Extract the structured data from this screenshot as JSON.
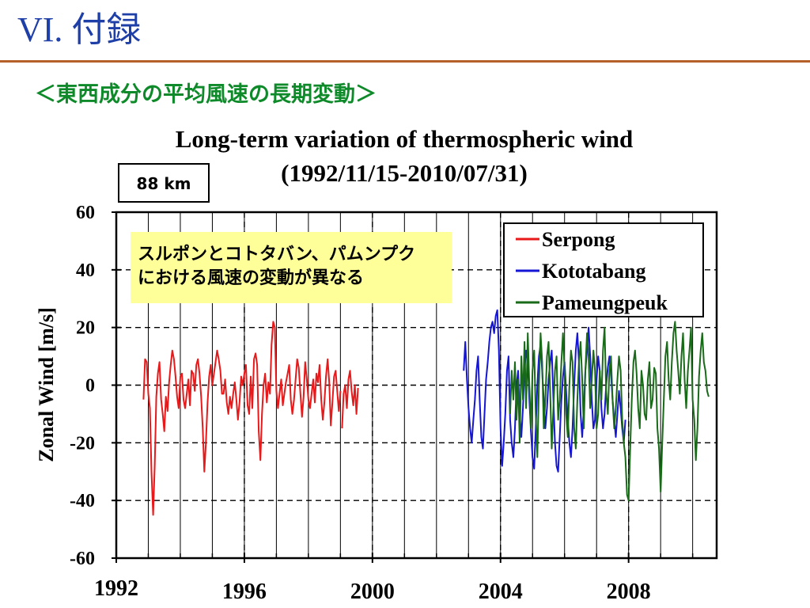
{
  "slide": {
    "title": "VI. 付録",
    "subtitle": "＜東西成分の平均風速の長期変動＞",
    "callout_lines": [
      "スルポンとコトタバン、パムンプク",
      "における風速の変動が異なる"
    ],
    "colors": {
      "title": "#1f3fa8",
      "rule": "#b5602a",
      "subtitle": "#0f8a2a",
      "callout_bg": "#ffff99"
    }
  },
  "chart_data": {
    "type": "line",
    "title": "Long-term variation of thermospheric wind",
    "subtitle": "(1992/11/15-2010/07/31)",
    "altitude_label": "88 km",
    "ylabel": "Zonal Wind [m/s]",
    "xlabel": "",
    "xlim": [
      1992,
      2010.75
    ],
    "ylim": [
      -60,
      60
    ],
    "x_ticks": [
      1992,
      1996,
      2000,
      2004,
      2008
    ],
    "x_tick_labels": [
      "1992",
      "1996",
      "2000",
      "2004",
      "2008"
    ],
    "y_ticks": [
      -60,
      -40,
      -20,
      0,
      20,
      40,
      60
    ],
    "y_tick_labels": [
      "-60",
      "-40",
      "-20",
      "0",
      "20",
      "40",
      "60"
    ],
    "grid": true,
    "legend_position": "top-right",
    "series": [
      {
        "name": "Serpong",
        "color": "#e8191a",
        "segments": [
          {
            "x": [
              1992.85,
              1992.9,
              1992.95,
              1993.0,
              1993.05,
              1993.1,
              1993.15,
              1993.2,
              1993.25,
              1993.3,
              1993.35,
              1993.4,
              1993.45,
              1993.5,
              1993.55,
              1993.6,
              1993.65,
              1993.7,
              1993.75,
              1993.8,
              1993.85,
              1993.9,
              1993.95,
              1994.0,
              1994.05,
              1994.1,
              1994.15,
              1994.2,
              1994.25,
              1994.3,
              1994.35,
              1994.4,
              1994.45,
              1994.5,
              1994.55,
              1994.6,
              1994.65,
              1994.7,
              1994.75,
              1994.8,
              1994.85,
              1994.9,
              1994.95,
              1995.0,
              1995.05,
              1995.1,
              1995.15,
              1995.2,
              1995.25,
              1995.3,
              1995.35,
              1995.4,
              1995.45,
              1995.5,
              1995.55,
              1995.6,
              1995.65,
              1995.7,
              1995.75,
              1995.8,
              1995.85,
              1995.9,
              1995.95,
              1996.0,
              1996.05,
              1996.1,
              1996.15,
              1996.2,
              1996.25,
              1996.3,
              1996.35,
              1996.4,
              1996.45,
              1996.5,
              1996.55,
              1996.6,
              1996.65,
              1996.7,
              1996.75,
              1996.8,
              1996.85,
              1996.9,
              1996.95,
              1997.0,
              1997.05,
              1997.1,
              1997.15,
              1997.2,
              1997.25,
              1997.3,
              1997.35,
              1997.4,
              1997.45,
              1997.5,
              1997.55,
              1997.6,
              1997.65,
              1997.7,
              1997.75,
              1997.8,
              1997.85,
              1997.9,
              1997.95,
              1998.0,
              1998.05,
              1998.1,
              1998.15,
              1998.2,
              1998.25,
              1998.3,
              1998.35,
              1998.4,
              1998.45,
              1998.5,
              1998.55,
              1998.6,
              1998.65,
              1998.7,
              1998.75,
              1998.8,
              1998.85,
              1998.9,
              1998.95,
              1999.0
            ],
            "y": [
              -5,
              9,
              8,
              -3,
              -8,
              -30,
              -45,
              -28,
              -4,
              4,
              8,
              -5,
              -10,
              -16,
              -4,
              -9,
              1,
              7,
              12,
              9,
              3,
              -4,
              -8,
              3,
              4,
              -5,
              -8,
              -3,
              2,
              -7,
              5,
              4,
              -2,
              7,
              9,
              4,
              -4,
              -15,
              -30,
              -20,
              -6,
              3,
              7,
              0,
              4,
              8,
              12,
              9,
              5,
              -3,
              -3,
              2,
              -6,
              -10,
              -4,
              -8,
              -3,
              1,
              -5,
              -12,
              -6,
              3,
              0,
              4,
              7,
              -7,
              -10,
              3,
              -8,
              9,
              11,
              7,
              -16,
              -26,
              -10,
              0,
              4,
              -6,
              1,
              -3,
              14,
              22,
              20,
              -2,
              -8,
              -3,
              2,
              -7,
              -3,
              1,
              4,
              7,
              -5,
              -10,
              -5,
              2,
              9,
              6,
              -3,
              -11,
              -4,
              8,
              2,
              -5,
              -8,
              -3,
              2,
              -6,
              4,
              1,
              7,
              -5,
              -12,
              -6,
              3,
              9,
              1,
              -14,
              -6,
              3,
              5,
              -2,
              -9,
              -2
            ]
          },
          {
            "x": [
              1999.05,
              1999.1,
              1999.15,
              1999.2,
              1999.25,
              1999.3,
              1999.35,
              1999.4,
              1999.45,
              1999.5,
              1999.55
            ],
            "y": [
              -15,
              -3,
              0,
              -8,
              2,
              5,
              -2,
              -7,
              0,
              -10,
              -1
            ]
          }
        ]
      },
      {
        "name": "Kototabang",
        "color": "#1515d6",
        "segments": [
          {
            "x": [
              2002.85,
              2002.9,
              2002.95,
              2003.0,
              2003.05,
              2003.1,
              2003.15,
              2003.2,
              2003.25,
              2003.3,
              2003.35,
              2003.4,
              2003.45,
              2003.5,
              2003.55,
              2003.6,
              2003.65,
              2003.7,
              2003.75,
              2003.8,
              2003.85,
              2003.9,
              2003.95,
              2004.0,
              2004.05,
              2004.1,
              2004.15,
              2004.2,
              2004.25,
              2004.3,
              2004.35,
              2004.4,
              2004.45,
              2004.5,
              2004.55,
              2004.6,
              2004.65,
              2004.7,
              2004.75,
              2004.8,
              2004.85,
              2004.9,
              2004.95,
              2005.0,
              2005.05,
              2005.1,
              2005.15,
              2005.2,
              2005.25,
              2005.3,
              2005.35,
              2005.4,
              2005.45,
              2005.5,
              2005.55,
              2005.6,
              2005.65,
              2005.7,
              2005.75,
              2005.8,
              2005.85,
              2005.9,
              2005.95,
              2006.0,
              2006.05,
              2006.1,
              2006.15,
              2006.2,
              2006.25,
              2006.3,
              2006.35,
              2006.4,
              2006.45,
              2006.5,
              2006.55,
              2006.6,
              2006.65,
              2006.7,
              2006.75,
              2006.8,
              2006.85,
              2006.9,
              2006.95,
              2007.0,
              2007.05,
              2007.1,
              2007.15,
              2007.2,
              2007.25,
              2007.3,
              2007.35,
              2007.4,
              2007.45,
              2007.5,
              2007.55,
              2007.6,
              2007.65,
              2007.7,
              2007.75,
              2007.8,
              2007.85,
              2007.9
            ],
            "y": [
              5,
              15,
              2,
              -8,
              -15,
              -20,
              -12,
              -5,
              5,
              10,
              -5,
              -18,
              -22,
              -10,
              2,
              8,
              15,
              20,
              22,
              18,
              24,
              26,
              12,
              -15,
              -28,
              -20,
              -10,
              5,
              10,
              -12,
              -20,
              -25,
              -15,
              0,
              5,
              -10,
              -18,
              -8,
              5,
              12,
              8,
              -5,
              -16,
              -25,
              -29,
              -15,
              0,
              10,
              14,
              5,
              -5,
              -15,
              -8,
              2,
              8,
              12,
              -5,
              -20,
              -28,
              -30,
              -18,
              -5,
              3,
              8,
              -2,
              -12,
              -20,
              -25,
              -15,
              0,
              12,
              18,
              8,
              -10,
              -18,
              -8,
              5,
              12,
              20,
              10,
              -5,
              -15,
              -12,
              2,
              10,
              5,
              -8,
              -15,
              -10,
              0,
              6,
              10,
              4,
              -5,
              -12,
              -18,
              -10,
              -2,
              -8,
              -15,
              -20,
              -12
            ]
          }
        ]
      },
      {
        "name": "Pameungpeuk",
        "color": "#196b19",
        "segments": [
          {
            "x": [
              2004.3,
              2004.35,
              2004.4,
              2004.45,
              2004.5,
              2004.55,
              2004.6,
              2004.65,
              2004.7,
              2004.75,
              2004.8,
              2004.85,
              2004.9,
              2004.95,
              2005.0,
              2005.05,
              2005.1,
              2005.15,
              2005.2,
              2005.25,
              2005.3,
              2005.35,
              2005.4,
              2005.45,
              2005.5,
              2005.55,
              2005.6,
              2005.65,
              2005.7,
              2005.75,
              2005.8,
              2005.85,
              2005.9,
              2005.95,
              2006.0,
              2006.05,
              2006.1,
              2006.15,
              2006.2,
              2006.25,
              2006.3,
              2006.35,
              2006.4,
              2006.45,
              2006.5,
              2006.55,
              2006.6,
              2006.65,
              2006.7,
              2006.75,
              2006.8,
              2006.85,
              2006.9,
              2006.95,
              2007.0,
              2007.05,
              2007.1,
              2007.15,
              2007.2,
              2007.25,
              2007.3,
              2007.35,
              2007.4,
              2007.45,
              2007.5,
              2007.55,
              2007.6,
              2007.65,
              2007.7,
              2007.75,
              2007.8,
              2007.85,
              2007.9,
              2007.95,
              2008.0,
              2008.05,
              2008.1,
              2008.15,
              2008.2,
              2008.25,
              2008.3,
              2008.35,
              2008.4,
              2008.45,
              2008.5,
              2008.55,
              2008.6,
              2008.65,
              2008.7,
              2008.75,
              2008.8,
              2008.85,
              2008.9,
              2008.95,
              2009.0,
              2009.05,
              2009.1,
              2009.15,
              2009.2,
              2009.25,
              2009.3,
              2009.35,
              2009.4,
              2009.45,
              2009.5,
              2009.55,
              2009.6,
              2009.65,
              2009.7,
              2009.75,
              2009.8,
              2009.85,
              2009.9,
              2009.95,
              2010.0,
              2010.05,
              2010.1,
              2010.15,
              2010.2,
              2010.25,
              2010.3,
              2010.35,
              2010.4,
              2010.45,
              2010.5
            ],
            "y": [
              -10,
              5,
              -5,
              8,
              -12,
              2,
              -20,
              10,
              -5,
              15,
              -8,
              18,
              0,
              -15,
              5,
              12,
              -10,
              -25,
              0,
              18,
              8,
              -15,
              -5,
              10,
              15,
              -2,
              -22,
              -8,
              5,
              10,
              -12,
              -5,
              8,
              18,
              5,
              -10,
              -18,
              0,
              12,
              8,
              -15,
              -22,
              -5,
              8,
              15,
              2,
              -15,
              5,
              18,
              10,
              -8,
              2,
              12,
              5,
              -15,
              -10,
              5,
              -5,
              12,
              20,
              -2,
              -10,
              5,
              10,
              -5,
              -15,
              -8,
              2,
              10,
              5,
              -12,
              -20,
              -25,
              -38,
              -40,
              -22,
              -5,
              8,
              12,
              4,
              -8,
              -15,
              5,
              0,
              -10,
              -12,
              2,
              8,
              -8,
              -5,
              6,
              4,
              -15,
              -22,
              -37,
              -20,
              -5,
              10,
              15,
              2,
              -5,
              8,
              18,
              22,
              12,
              5,
              -3,
              10,
              18,
              2,
              -8,
              5,
              12,
              20,
              -5,
              -12,
              -26,
              -15,
              3,
              12,
              18,
              8,
              5,
              -2,
              -4
            ]
          }
        ]
      }
    ]
  }
}
